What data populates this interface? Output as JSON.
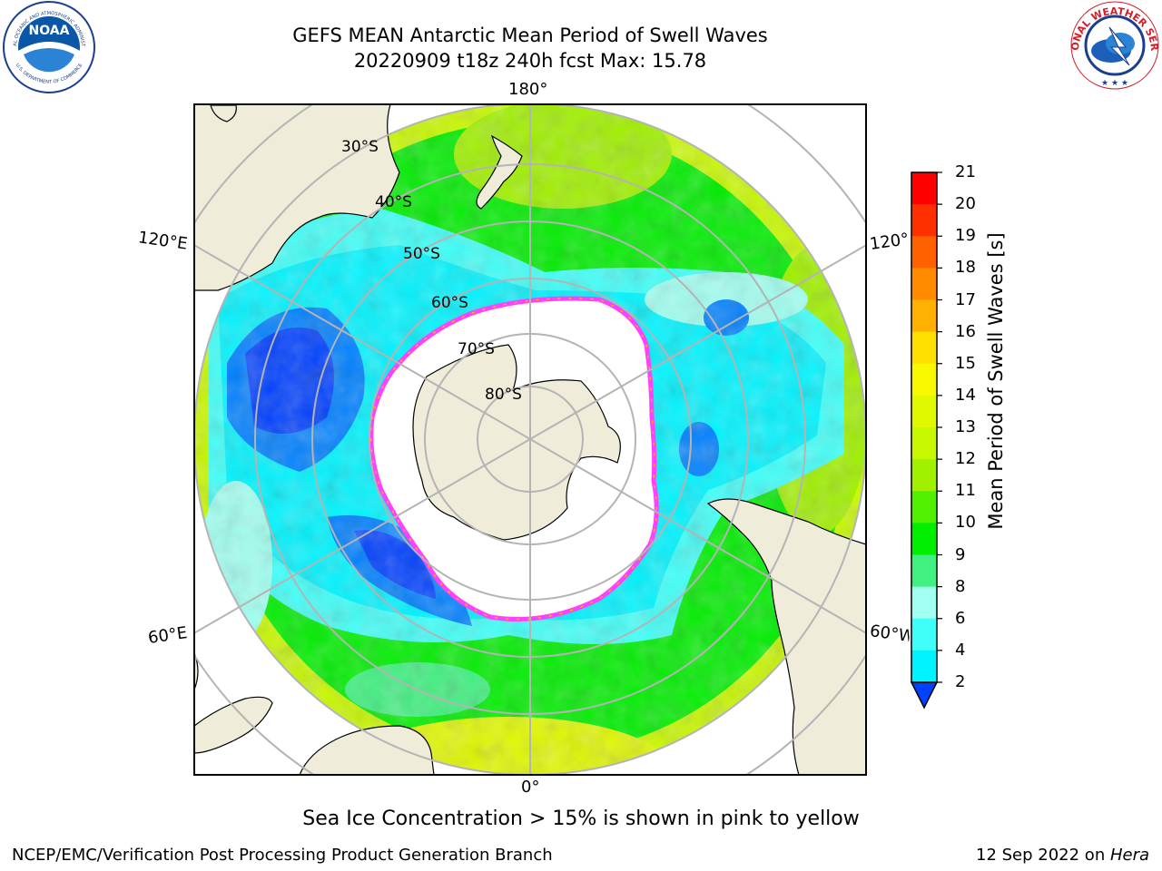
{
  "header": {
    "title": "GEFS MEAN Antarctic Mean Period of Swell Waves",
    "subtitle": "20220909 t18z 240h fcst   Max: 15.78"
  },
  "logos": {
    "noaa_text": "NOAA",
    "noaa_ring_text": "NATIONAL OCEANIC AND ATMOSPHERIC ADMINISTRATION",
    "noaa_ring_bottom": "U.S. DEPARTMENT OF COMMERCE",
    "nws_ring_text": "NATIONAL WEATHER SERVICE"
  },
  "map": {
    "projection": "south-polar-stereographic",
    "longitude_labels": {
      "top": "180°",
      "bottom": "0°",
      "left_upper": "120°E",
      "left_lower": "60°E",
      "right_upper": "120°W",
      "right_lower": "60°W"
    },
    "latitude_labels": [
      "30°S",
      "40°S",
      "50°S",
      "60°S",
      "70°S",
      "80°S"
    ],
    "colors": {
      "land": "#efedda",
      "coast": "#000000",
      "grid": "#b4b4b4",
      "ice_edge": "#ff40ff",
      "no_data": "#ffffff"
    },
    "regions": [
      {
        "name": "Antarctica",
        "type": "land"
      },
      {
        "name": "Australia",
        "type": "land"
      },
      {
        "name": "New Zealand",
        "type": "land"
      },
      {
        "name": "South America",
        "type": "land"
      },
      {
        "name": "Africa",
        "type": "land"
      },
      {
        "name": "Madagascar",
        "type": "land"
      }
    ]
  },
  "colorbar": {
    "label": "Mean Period of Swell Waves [s]",
    "ticks": [
      "21",
      "20",
      "19",
      "18",
      "17",
      "16",
      "15",
      "14",
      "13",
      "12",
      "11",
      "10",
      "9",
      "8",
      "6",
      "4",
      "2"
    ],
    "colors": [
      "#ff0000",
      "#ff3000",
      "#ff6000",
      "#ff8c00",
      "#ffb000",
      "#ffe000",
      "#f8f800",
      "#e0f800",
      "#c8f800",
      "#a0f000",
      "#50f000",
      "#00ee00",
      "#40f080",
      "#a0fff0",
      "#40fff8",
      "#00f4ff",
      "#0080ff",
      "#0040ff"
    ],
    "extend": "min"
  },
  "footer": {
    "note": "Sea Ice Concentration > 15% is shown in pink to yellow",
    "credit": "NCEP/EMC/Verification Post Processing Product Generation Branch",
    "date": "12 Sep 2022 on ",
    "machine": "Hera"
  }
}
